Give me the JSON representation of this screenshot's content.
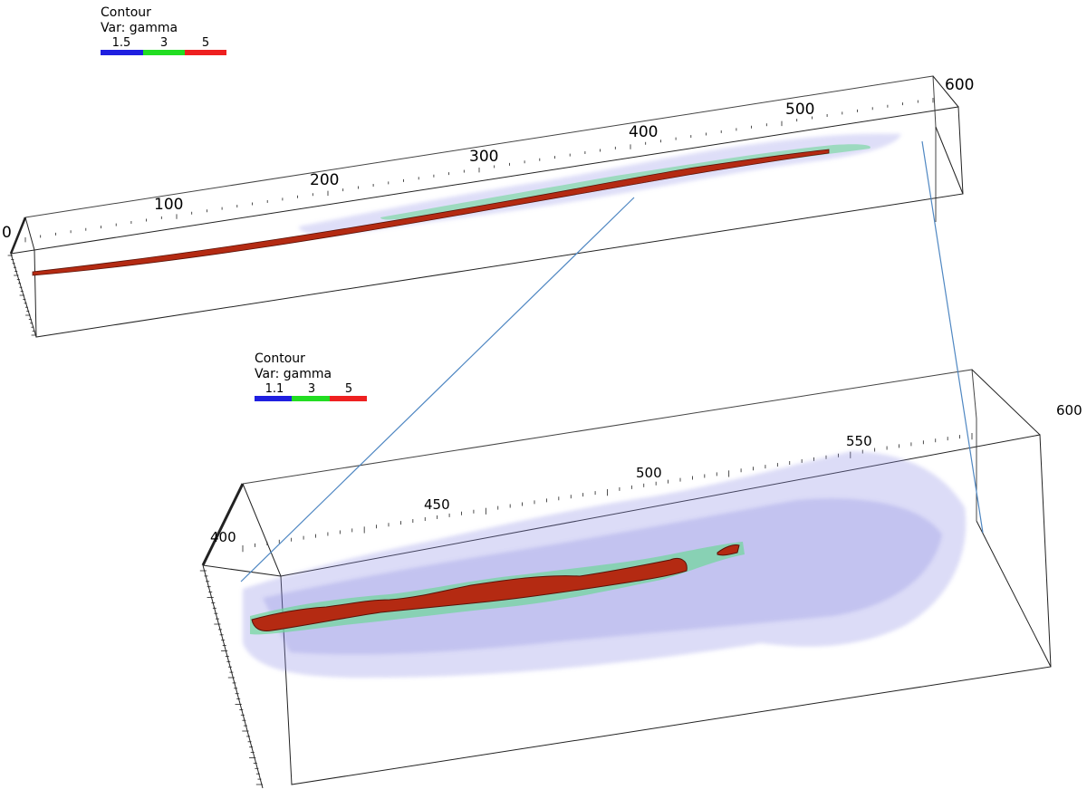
{
  "legend_top": {
    "title": "Contour",
    "var": "Var: gamma",
    "levels": [
      "1.5",
      "3",
      "5"
    ],
    "colors": [
      "#1f1fe0",
      "#22dd22",
      "#ee2020"
    ]
  },
  "legend_bottom": {
    "title": "Contour",
    "var": "Var: gamma",
    "levels": [
      "1.1",
      "3",
      "5"
    ],
    "colors": [
      "#1f1fe0",
      "#22dd22",
      "#ee2020"
    ]
  },
  "top_view": {
    "axis_ticks": [
      "0",
      "100",
      "200",
      "300",
      "400",
      "500",
      "600"
    ]
  },
  "zoom_view": {
    "axis_ticks": [
      "400",
      "450",
      "500",
      "550",
      "600"
    ]
  },
  "colors": {
    "jet_core": "#b42a12",
    "jet_core_edge": "#5a1208",
    "green_shell": "#6fd79a",
    "blue_cocoon": "#8a8ae6",
    "connector": "#4f87c2",
    "box_edge": "#222222"
  }
}
